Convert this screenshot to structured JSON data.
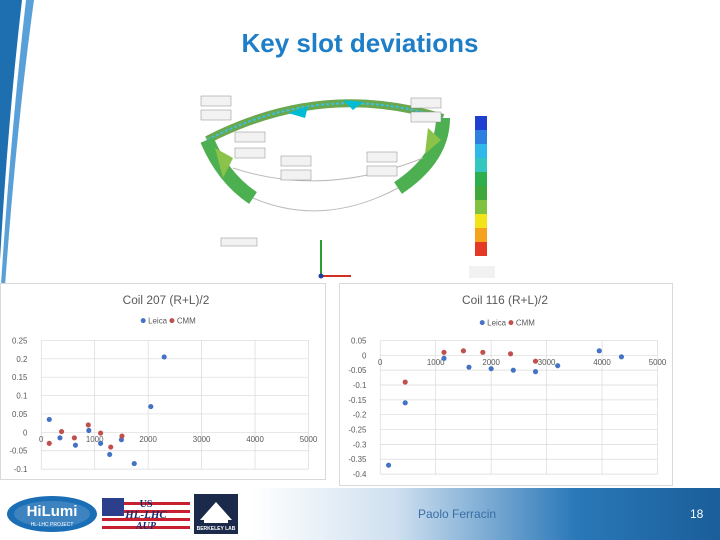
{
  "slide": {
    "title": "Key slot deviations",
    "author": "Paolo Ferracin",
    "page_number": "18"
  },
  "logos": {
    "hilumi_text": "HiLumi",
    "hilumi_sub": "HL-LHC PROJECT",
    "us_line1": "US",
    "us_line2": "HL-LHC",
    "us_line3": "AUP",
    "berkeley_text": "BERKELEY LAB"
  },
  "colors": {
    "title": "#1e7ec8",
    "leica": "#4472c4",
    "cmm": "#c0504d"
  },
  "chart_data": [
    {
      "type": "scatter",
      "title": "Coil 207 (R+L)/2",
      "xlim": [
        0,
        5000
      ],
      "ylim": [
        -0.1,
        0.25
      ],
      "x_ticks": [
        "0",
        "1000",
        "2000",
        "3000",
        "4000",
        "5000"
      ],
      "y_ticks": [
        "-0.1",
        "-0.05",
        "0",
        "0.05",
        "0.1",
        "0.15",
        "0.2",
        "0.25"
      ],
      "grid": true,
      "legend": "top",
      "series": [
        {
          "name": "Leica",
          "color": "#4472c4",
          "points": [
            [
              150,
              0.035
            ],
            [
              350,
              -0.015
            ],
            [
              640,
              -0.035
            ],
            [
              890,
              0.005
            ],
            [
              1110,
              -0.03
            ],
            [
              1280,
              -0.06
            ],
            [
              1500,
              -0.02
            ],
            [
              1740,
              -0.085
            ],
            [
              2050,
              0.07
            ],
            [
              2300,
              0.205
            ]
          ]
        },
        {
          "name": "CMM",
          "color": "#c0504d",
          "points": [
            [
              150,
              -0.03
            ],
            [
              380,
              0.002
            ],
            [
              620,
              -0.015
            ],
            [
              880,
              0.02
            ],
            [
              1110,
              -0.002
            ],
            [
              1300,
              -0.04
            ],
            [
              1510,
              -0.01
            ]
          ]
        }
      ]
    },
    {
      "type": "scatter",
      "title": "Coil 116 (R+L)/2",
      "xlim": [
        0,
        5000
      ],
      "ylim": [
        -0.4,
        0.05
      ],
      "x_ticks": [
        "0",
        "1000",
        "2000",
        "3000",
        "4000",
        "5000"
      ],
      "y_ticks": [
        "-0.4",
        "-0.35",
        "-0.3",
        "-0.25",
        "-0.2",
        "-0.15",
        "-0.1",
        "-0.05",
        "0",
        "0.05"
      ],
      "grid": true,
      "legend": "top",
      "series": [
        {
          "name": "Leica",
          "color": "#4472c4",
          "points": [
            [
              150,
              -0.37
            ],
            [
              450,
              -0.16
            ],
            [
              1150,
              -0.01
            ],
            [
              1600,
              -0.04
            ],
            [
              2000,
              -0.045
            ],
            [
              2400,
              -0.05
            ],
            [
              2800,
              -0.055
            ],
            [
              3200,
              -0.035
            ],
            [
              3950,
              0.015
            ],
            [
              4350,
              -0.005
            ]
          ]
        },
        {
          "name": "CMM",
          "color": "#c0504d",
          "points": [
            [
              450,
              -0.09
            ],
            [
              1150,
              0.01
            ],
            [
              1500,
              0.015
            ],
            [
              1850,
              0.01
            ],
            [
              2350,
              0.005
            ],
            [
              2800,
              -0.02
            ]
          ]
        }
      ]
    }
  ]
}
